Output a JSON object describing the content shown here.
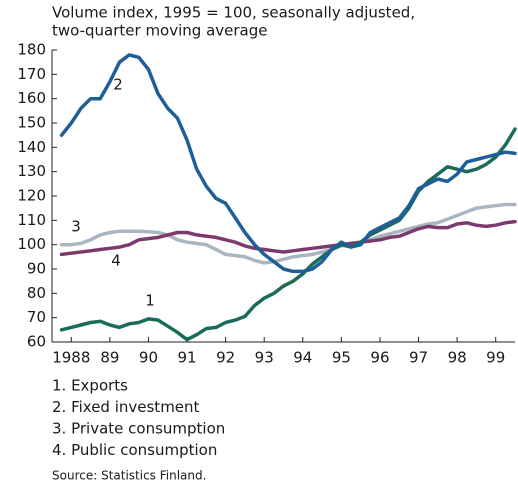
{
  "chart_data": {
    "type": "line",
    "title": "Volume index, 1995 = 100, seasonally adjusted,",
    "subtitle": "two-quarter moving average",
    "x": [
      1988.25,
      1988.5,
      1988.75,
      1989,
      1989.25,
      1989.5,
      1989.75,
      1990,
      1990.25,
      1990.5,
      1990.75,
      1991,
      1991.25,
      1991.5,
      1991.75,
      1992,
      1992.25,
      1992.5,
      1992.75,
      1993,
      1993.25,
      1993.5,
      1993.75,
      1994,
      1994.25,
      1994.5,
      1994.75,
      1995,
      1995.25,
      1995.5,
      1995.75,
      1996,
      1996.25,
      1996.5,
      1996.75,
      1997,
      1997.25,
      1997.5,
      1997.75,
      1998,
      1998.25,
      1998.5,
      1998.75,
      1999,
      1999.25,
      1999.5,
      1999.75,
      2000
    ],
    "series": [
      {
        "name": "1. Exports",
        "color": "#1b6b5a",
        "values": [
          65,
          66,
          67,
          68,
          68.5,
          67,
          66,
          67.5,
          68,
          69.5,
          69,
          66.5,
          64,
          61,
          63,
          65.5,
          66,
          68,
          69,
          70.5,
          75,
          78,
          80,
          83,
          85,
          88,
          92,
          95,
          98,
          100,
          99,
          101,
          104,
          106,
          108,
          110,
          115,
          122,
          126,
          129,
          132,
          131,
          130,
          131,
          133,
          136,
          141,
          147.5
        ]
      },
      {
        "name": "2. Fixed investment",
        "color": "#1f5f99",
        "values": [
          145,
          150,
          156,
          160,
          160,
          167,
          175,
          178,
          177,
          172,
          162,
          156,
          152,
          143,
          131,
          124,
          119,
          117,
          111,
          105,
          100,
          96,
          93,
          90,
          89,
          89,
          90,
          93,
          98,
          101,
          99,
          100,
          105,
          107,
          109,
          111,
          116,
          123,
          125,
          127,
          126,
          129,
          134,
          135,
          136,
          137,
          138,
          137.5
        ]
      },
      {
        "name": "3. Private consumption",
        "color": "#aab5c1",
        "values": [
          100,
          100,
          100.5,
          102,
          104,
          105,
          105.5,
          105.5,
          105.5,
          105.3,
          105,
          104,
          102,
          101,
          100.5,
          100,
          98,
          96,
          95.5,
          95,
          93.5,
          92.5,
          93,
          94,
          95,
          95.5,
          96,
          97,
          98,
          99.5,
          100,
          101,
          102,
          103.5,
          104.5,
          105.5,
          106.5,
          107.5,
          108.5,
          109,
          110.5,
          112,
          113.5,
          115,
          115.5,
          116,
          116.5,
          116.5
        ]
      },
      {
        "name": "4. Public consumption",
        "color": "#7b3a6d",
        "values": [
          96,
          96.5,
          97,
          97.5,
          98,
          98.5,
          99,
          100,
          102,
          102.5,
          103,
          104,
          105,
          105,
          104,
          103.5,
          103,
          102,
          101,
          99.5,
          98.5,
          98,
          97.5,
          97,
          97.5,
          98,
          98.5,
          99,
          99.5,
          100,
          100.5,
          101,
          101.5,
          102,
          103,
          103.5,
          105,
          106.5,
          107.5,
          107,
          107,
          108.5,
          109,
          108,
          107.5,
          108,
          109,
          109.5
        ]
      }
    ],
    "annotations": [
      "1",
      "2",
      "3",
      "4"
    ],
    "xlim": [
      1988,
      2000
    ],
    "xticks": [
      {
        "value": 1988.5,
        "label": "1988"
      },
      {
        "value": 1989.5,
        "label": "89"
      },
      {
        "value": 1990.5,
        "label": "90"
      },
      {
        "value": 1991.5,
        "label": "91"
      },
      {
        "value": 1992.5,
        "label": "92"
      },
      {
        "value": 1993.5,
        "label": "93"
      },
      {
        "value": 1994.5,
        "label": "94"
      },
      {
        "value": 1995.5,
        "label": "95"
      },
      {
        "value": 1996.5,
        "label": "96"
      },
      {
        "value": 1997.5,
        "label": "97"
      },
      {
        "value": 1998.5,
        "label": "98"
      },
      {
        "value": 1999.5,
        "label": "99"
      }
    ],
    "ylim": [
      60,
      180
    ],
    "yticks": [
      60,
      70,
      80,
      90,
      100,
      110,
      120,
      130,
      140,
      150,
      160,
      170,
      180
    ],
    "grid": false,
    "source": "Source: Statistics Finland."
  }
}
